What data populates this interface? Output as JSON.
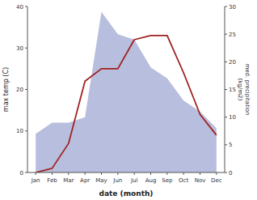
{
  "chart_data": {
    "type": "line",
    "xlabel": "date (month)",
    "ylabel": "max temp (C)",
    "y2label": "med. precipitation\n(kg/m2)",
    "categories": [
      "Jan",
      "Feb",
      "Mar",
      "Apr",
      "May",
      "Jun",
      "Jul",
      "Aug",
      "Sep",
      "Oct",
      "Nov",
      "Dec"
    ],
    "series": [
      {
        "type": "area",
        "axis": "y2",
        "color": "#b8bedd",
        "values": [
          7,
          9,
          9,
          10,
          29,
          25,
          24,
          19,
          17,
          13,
          11,
          8
        ]
      },
      {
        "type": "line",
        "color": "#a02020",
        "values": [
          0,
          1,
          7,
          22,
          25,
          25,
          32,
          33,
          33,
          24,
          14,
          9
        ]
      }
    ],
    "ylim": [
      0,
      40
    ],
    "yticks": [
      0,
      10,
      20,
      30,
      40
    ],
    "y2lim": [
      0,
      30
    ],
    "y2ticks": [
      0,
      5,
      10,
      15,
      20,
      25,
      30
    ],
    "grid": false
  }
}
